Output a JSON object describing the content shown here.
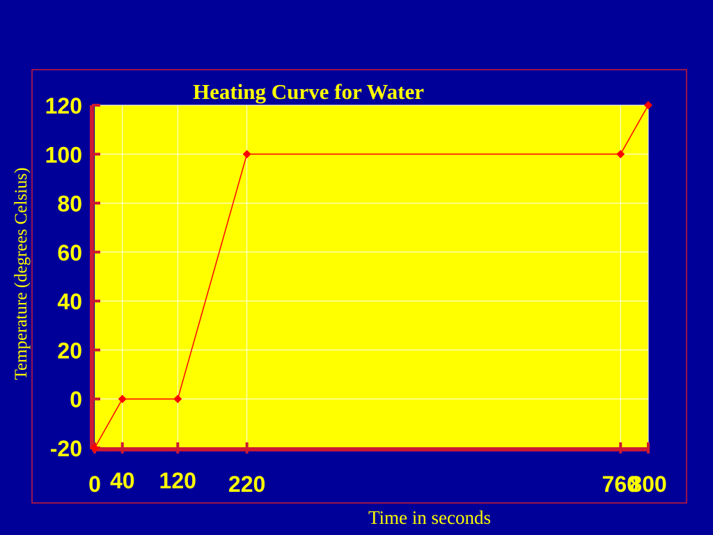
{
  "chart_data": {
    "type": "line",
    "title": "Heating Curve for Water",
    "xlabel": "Time in seconds",
    "ylabel": "Temperature (degrees Celsius)",
    "x": [
      0,
      40,
      120,
      220,
      760,
      800
    ],
    "series": [
      {
        "values": [
          -20,
          0,
          0,
          100,
          100,
          120
        ]
      }
    ],
    "x_tick_labels": [
      "0",
      "40",
      "120",
      "220",
      "760",
      "800"
    ],
    "y_ticks": [
      -20,
      0,
      20,
      40,
      60,
      80,
      100,
      120
    ],
    "y_tick_labels": [
      "-20",
      "0",
      "20",
      "40",
      "60",
      "80",
      "100",
      "120"
    ],
    "ylim": [
      -20,
      120
    ],
    "grid": true,
    "colors": {
      "background": "#000099",
      "plot_area": "#ffff00",
      "line": "#ff0000",
      "marker": "#ff0000",
      "axis": "#cc1a33",
      "grid": "#ffffff",
      "text": "#ffff00",
      "frame": "#cc1a33"
    }
  }
}
